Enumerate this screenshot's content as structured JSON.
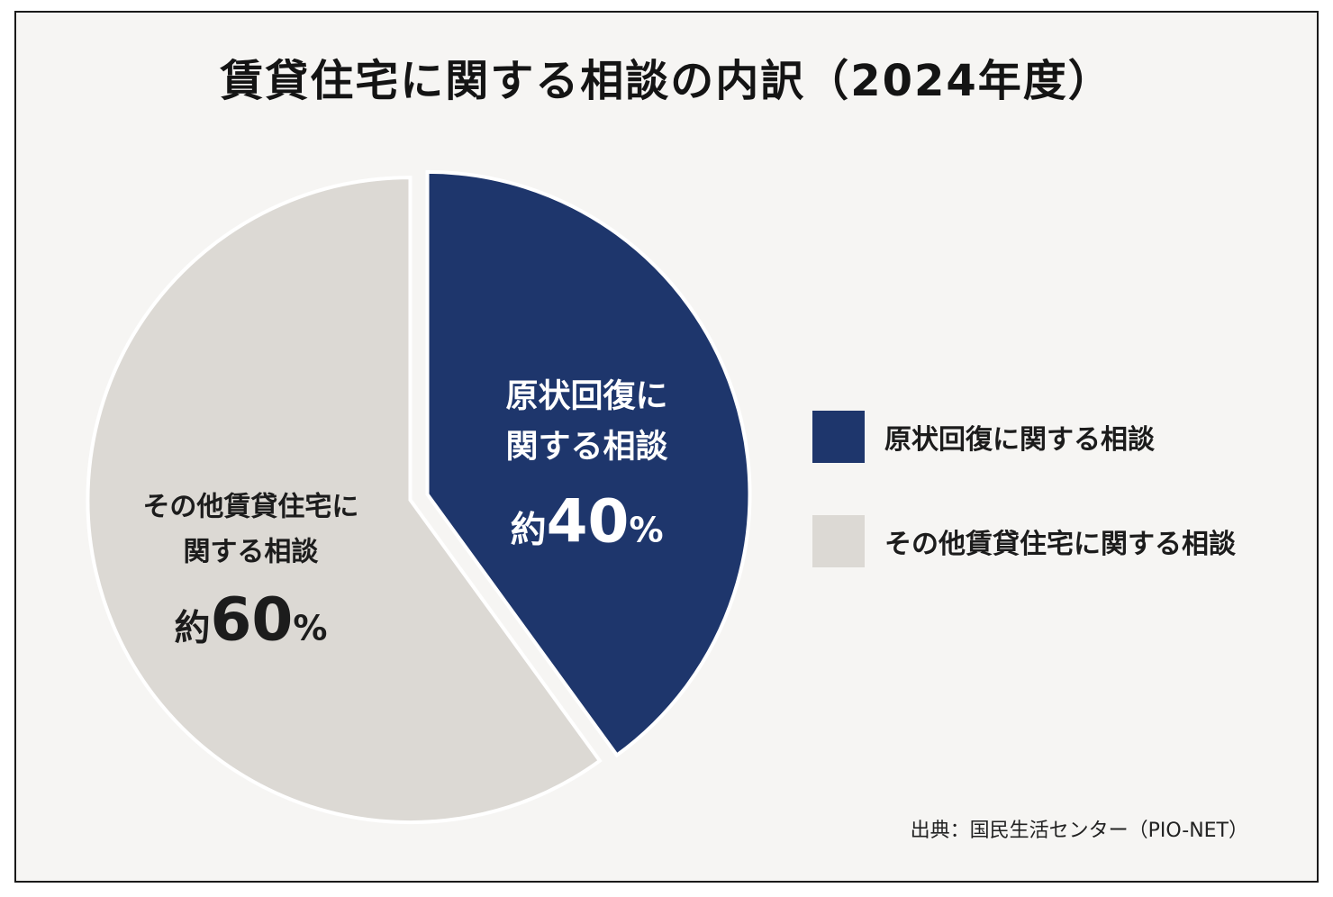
{
  "chart_data": {
    "type": "pie",
    "title": "賃貸住宅に関する相談の内訳（2024年度）",
    "slices": [
      {
        "name": "原状回復に関する相談",
        "label_lines": [
          "原状回復に",
          "関する相談"
        ],
        "prefix": "約",
        "value": 40,
        "unit": "%",
        "color": "#1e366c",
        "text_color": "#ffffff"
      },
      {
        "name": "その他賃貸住宅に関する相談",
        "label_lines": [
          "その他賃貸住宅に",
          "関する相談"
        ],
        "prefix": "約",
        "value": 60,
        "unit": "%",
        "color": "#dcd9d4",
        "text_color": "#1c1c1c"
      }
    ],
    "legend_position": "right",
    "source": "出典：国民生活センター（PIO-NET）"
  }
}
